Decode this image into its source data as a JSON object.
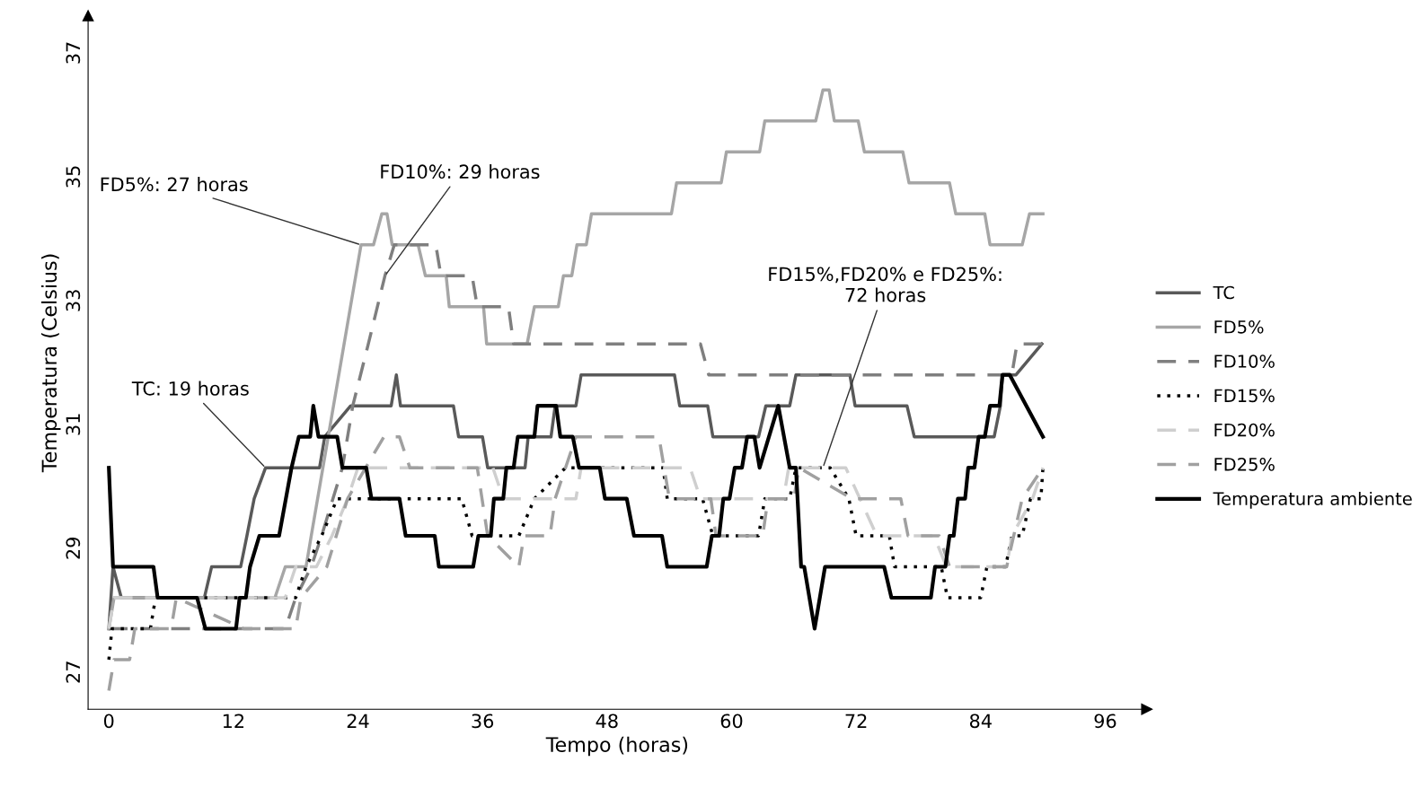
{
  "chart_data": {
    "type": "line",
    "xlabel": "Tempo (horas)",
    "ylabel": "Temperatura (Celsius)",
    "xlim": [
      -2,
      100
    ],
    "ylim": [
      26.4,
      37.6
    ],
    "xticks": [
      0,
      12,
      24,
      36,
      48,
      60,
      72,
      84,
      96
    ],
    "yticks": [
      27,
      29,
      31,
      33,
      35,
      37
    ],
    "grid": false,
    "legend": "right",
    "marker": "none",
    "series": [
      {
        "name": "TC",
        "color": "#595959",
        "line_style": "solid",
        "x": [
          0,
          0.4,
          1.2,
          9.2,
          9.9,
          12.7,
          13.3,
          14,
          15.1,
          20.3,
          20.8,
          23.3,
          27.2,
          27.7,
          28.1,
          33.2,
          33.7,
          36,
          36.5,
          40.1,
          40.4,
          42.6,
          43,
          45,
          45.5,
          54.5,
          55,
          57.7,
          58.2,
          62.6,
          63.3,
          65.6,
          66.2,
          71.4,
          71.9,
          76.9,
          77.6,
          85.3,
          85.9,
          86.1,
          87.4,
          89.9
        ],
        "values": [
          27.7,
          28.7,
          28.2,
          28.2,
          28.7,
          28.7,
          29.2,
          29.8,
          30.3,
          30.3,
          30.8,
          31.3,
          31.3,
          31.8,
          31.3,
          31.3,
          30.8,
          30.8,
          30.3,
          30.3,
          30.8,
          30.8,
          31.3,
          31.3,
          31.8,
          31.8,
          31.3,
          31.3,
          30.8,
          30.8,
          31.3,
          31.3,
          31.8,
          31.8,
          31.3,
          31.3,
          30.8,
          30.8,
          31.3,
          31.8,
          31.8,
          32.3
        ]
      },
      {
        "name": "FD5%",
        "color": "#a6a6a6",
        "line_style": "solid",
        "x": [
          0,
          0.5,
          16,
          17,
          19,
          19.5,
          24.3,
          25.5,
          26.3,
          26.8,
          27.3,
          29.8,
          30.5,
          32.5,
          32.8,
          36.1,
          36.4,
          40.3,
          41,
          43.3,
          43.8,
          44.6,
          45.1,
          46,
          46.5,
          54.2,
          54.7,
          59,
          59.5,
          62.7,
          63.2,
          64.4,
          64.9,
          68.1,
          68.8,
          69.4,
          69.9,
          72.2,
          72.8,
          76.5,
          77.1,
          81,
          81.6,
          84.4,
          84.9,
          88,
          88.7,
          90
        ],
        "values": [
          27.7,
          28.2,
          28.2,
          28.7,
          28.7,
          29.2,
          33.9,
          33.9,
          34.4,
          34.4,
          33.9,
          33.9,
          33.4,
          33.4,
          32.9,
          32.9,
          32.3,
          32.3,
          32.9,
          32.9,
          33.4,
          33.4,
          33.9,
          33.9,
          34.4,
          34.4,
          34.9,
          34.9,
          35.4,
          35.4,
          35.9,
          35.9,
          35.9,
          35.9,
          36.4,
          36.4,
          35.9,
          35.9,
          35.4,
          35.4,
          34.9,
          34.9,
          34.4,
          34.4,
          33.9,
          33.9,
          34.4,
          34.4
        ]
      },
      {
        "name": "FD10%",
        "color": "#7f7f7f",
        "line_style": "dashed",
        "x": [
          0,
          1.5,
          2,
          4,
          4.5,
          6.5,
          13,
          17,
          18,
          19.5,
          20.5,
          22.5,
          23.5,
          25,
          26.6,
          27.5,
          31.5,
          32,
          35,
          35.5,
          38.5,
          39,
          57,
          57.8,
          87,
          87.5,
          90
        ],
        "values": [
          27.7,
          27.7,
          27.7,
          27.7,
          27.7,
          27.7,
          27.7,
          27.7,
          28.2,
          28.7,
          29.2,
          30.3,
          31.3,
          32.3,
          33.4,
          33.9,
          33.9,
          33.4,
          33.4,
          32.9,
          32.9,
          32.3,
          32.3,
          31.8,
          31.8,
          32.3,
          32.3
        ]
      },
      {
        "name": "FD15%",
        "color": "#000000",
        "line_style": "dotted",
        "x": [
          0,
          0.3,
          4,
          4.5,
          18,
          19,
          20.5,
          22,
          24,
          34,
          35,
          39.5,
          41,
          44,
          53.4,
          53.8,
          57.2,
          58.2,
          62.6,
          63.2,
          65.6,
          66.2,
          69.5,
          71.3,
          72,
          75.2,
          75.7,
          80.2,
          80.8,
          84,
          84.6,
          86.4,
          87,
          88,
          88.8,
          89.8,
          90
        ],
        "values": [
          27.2,
          27.7,
          27.7,
          28.2,
          28.2,
          28.7,
          29.2,
          29.8,
          29.8,
          29.8,
          29.2,
          29.2,
          29.8,
          30.3,
          30.3,
          29.8,
          29.8,
          29.2,
          29.2,
          29.8,
          29.8,
          30.3,
          30.3,
          29.8,
          29.2,
          29.2,
          28.7,
          28.7,
          28.2,
          28.2,
          28.7,
          28.7,
          29.2,
          29.2,
          29.8,
          29.8,
          30.3
        ]
      },
      {
        "name": "FD20%",
        "color": "#cfcfcf",
        "line_style": "dashed",
        "x": [
          0,
          0.5,
          4,
          4.5,
          17,
          18,
          20,
          21.5,
          23,
          24,
          37,
          38,
          45,
          45.5,
          56,
          57,
          65,
          65.5,
          71,
          74,
          79.5,
          80.7,
          86.5,
          87,
          89,
          90
        ],
        "values": [
          27.7,
          28.2,
          28.2,
          28.2,
          28.2,
          28.7,
          28.7,
          29.2,
          29.8,
          30.3,
          30.3,
          29.8,
          29.8,
          30.3,
          30.3,
          29.8,
          29.8,
          30.3,
          30.3,
          29.2,
          29.2,
          28.7,
          28.7,
          29.2,
          29.8,
          30.3
        ]
      },
      {
        "name": "FD25%",
        "color": "#a0a0a0",
        "line_style": "dashed",
        "x": [
          0,
          0.5,
          2,
          2.5,
          6,
          6.5,
          13,
          18,
          18.5,
          21,
          23,
          26.5,
          28,
          29,
          35.5,
          36.5,
          39.5,
          40,
          42.5,
          43,
          45,
          53,
          54,
          58,
          58.5,
          63,
          63.5,
          66,
          66.5,
          71.6,
          76.3,
          77,
          80,
          81,
          86.5,
          88,
          90
        ],
        "values": [
          26.7,
          27.2,
          27.2,
          27.7,
          27.7,
          28.2,
          27.7,
          27.7,
          28.2,
          28.7,
          29.8,
          30.8,
          30.8,
          30.3,
          30.3,
          29.2,
          28.7,
          29.2,
          29.2,
          29.8,
          30.8,
          30.8,
          29.8,
          29.8,
          29.2,
          29.2,
          29.8,
          29.8,
          30.3,
          29.8,
          29.8,
          29.2,
          29.2,
          28.7,
          28.7,
          29.8,
          30.3
        ]
      },
      {
        "name": "Temperatura ambiente",
        "color": "#000000",
        "line_style": "solid",
        "x": [
          0,
          0.4,
          4.3,
          4.7,
          8.5,
          9.3,
          12.25,
          12.6,
          13.2,
          13.6,
          14.5,
          16.4,
          17.6,
          18.3,
          19.4,
          19.7,
          20.2,
          22,
          22.5,
          24.8,
          25.3,
          28,
          28.6,
          31.4,
          31.8,
          35.1,
          35.6,
          36.8,
          37.1,
          38,
          38.3,
          39,
          39.4,
          41,
          41.3,
          43.1,
          43.5,
          44.7,
          45.3,
          47.3,
          47.8,
          49.9,
          50.6,
          53.3,
          53.8,
          57.6,
          58.1,
          58.8,
          59.2,
          59.8,
          60.3,
          61,
          61.5,
          62.2,
          62.7,
          64.5,
          65.6,
          66.2,
          66.7,
          67,
          68,
          69,
          74.7,
          75.4,
          79.2,
          79.6,
          80.6,
          81,
          81.4,
          81.8,
          82.5,
          82.8,
          83.4,
          83.8,
          84.4,
          84.9,
          85.8,
          86.1,
          86.8,
          90
        ],
        "values": [
          30.3,
          28.7,
          28.7,
          28.2,
          28.2,
          27.7,
          27.7,
          28.2,
          28.2,
          28.7,
          29.2,
          29.2,
          30.3,
          30.8,
          30.8,
          31.3,
          30.8,
          30.8,
          30.3,
          30.3,
          29.8,
          29.8,
          29.2,
          29.2,
          28.7,
          28.7,
          29.2,
          29.2,
          29.8,
          29.8,
          30.3,
          30.3,
          30.8,
          30.8,
          31.3,
          31.3,
          30.8,
          30.8,
          30.3,
          30.3,
          29.8,
          29.8,
          29.2,
          29.2,
          28.7,
          28.7,
          29.2,
          29.2,
          29.8,
          29.8,
          30.3,
          30.3,
          30.8,
          30.8,
          30.3,
          31.3,
          30.3,
          30.3,
          28.7,
          28.7,
          27.7,
          28.7,
          28.7,
          28.2,
          28.2,
          28.7,
          28.7,
          29.2,
          29.2,
          29.8,
          29.8,
          30.3,
          30.3,
          30.8,
          30.8,
          31.3,
          31.3,
          31.8,
          31.8,
          30.8
        ]
      }
    ],
    "annotations": [
      {
        "text": "TC: 19 horas",
        "x": 15.1,
        "y": 30.3
      },
      {
        "text": "FD5%: 27 horas",
        "x": 24.3,
        "y": 33.9
      },
      {
        "text": "FD10%: 29 horas",
        "x": 26.6,
        "y": 33.4
      },
      {
        "text": "FD15%,FD20% e FD25%:\n72 horas",
        "x": 68.8,
        "y": 30.3
      }
    ]
  }
}
